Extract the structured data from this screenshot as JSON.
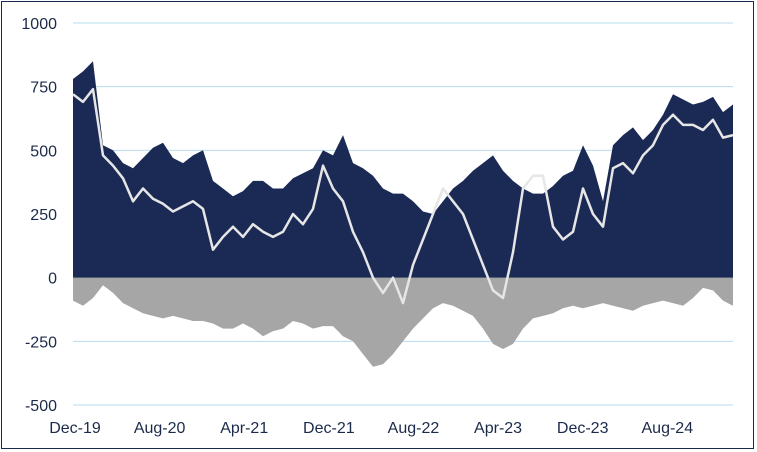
{
  "chart_data": {
    "type": "area",
    "title": "",
    "xlabel": "",
    "ylabel": "",
    "ylim": [
      -500,
      1000
    ],
    "yticks": [
      1000,
      750,
      500,
      250,
      0,
      -250,
      -500
    ],
    "xticks": [
      "Dec-19",
      "Aug-20",
      "Apr-21",
      "Dec-21",
      "Aug-22",
      "Apr-23",
      "Dec-23",
      "Aug-24"
    ],
    "xlim": [
      0,
      66
    ],
    "grid": "horizontal",
    "legend": "none",
    "colors": {
      "positive": "#1b2a55",
      "negative": "#a6a6a6",
      "line": "#e6e6e6",
      "grid": "#b7dcef",
      "axis": "#1b2a4a"
    },
    "series": [
      {
        "role": "positive-area",
        "x": [
          0,
          1,
          2,
          3,
          4,
          5,
          6,
          7,
          8,
          9,
          10,
          11,
          12,
          13,
          14,
          15,
          16,
          17,
          18,
          19,
          20,
          21,
          22,
          23,
          24,
          25,
          26,
          27,
          28,
          29,
          30,
          31,
          32,
          33,
          34,
          35,
          36,
          37,
          38,
          39,
          40,
          41,
          42,
          43,
          44,
          45,
          46,
          47,
          48,
          49,
          50,
          51,
          52,
          53,
          54,
          55,
          56,
          57,
          58,
          59,
          60,
          61,
          62,
          63,
          64,
          65,
          66
        ],
        "values": [
          780,
          810,
          850,
          520,
          500,
          450,
          430,
          470,
          510,
          530,
          470,
          450,
          480,
          500,
          380,
          350,
          320,
          340,
          380,
          380,
          350,
          350,
          390,
          410,
          430,
          500,
          480,
          560,
          450,
          430,
          400,
          350,
          330,
          330,
          300,
          260,
          250,
          300,
          350,
          380,
          420,
          450,
          480,
          420,
          380,
          350,
          330,
          330,
          360,
          400,
          420,
          520,
          440,
          300,
          520,
          560,
          590,
          540,
          580,
          640,
          720,
          700,
          680,
          690,
          710,
          650,
          680
        ]
      },
      {
        "role": "negative-area",
        "x": [
          0,
          1,
          2,
          3,
          4,
          5,
          6,
          7,
          8,
          9,
          10,
          11,
          12,
          13,
          14,
          15,
          16,
          17,
          18,
          19,
          20,
          21,
          22,
          23,
          24,
          25,
          26,
          27,
          28,
          29,
          30,
          31,
          32,
          33,
          34,
          35,
          36,
          37,
          38,
          39,
          40,
          41,
          42,
          43,
          44,
          45,
          46,
          47,
          48,
          49,
          50,
          51,
          52,
          53,
          54,
          55,
          56,
          57,
          58,
          59,
          60,
          61,
          62,
          63,
          64,
          65,
          66
        ],
        "values": [
          -90,
          -110,
          -80,
          -30,
          -60,
          -100,
          -120,
          -140,
          -150,
          -160,
          -150,
          -160,
          -170,
          -170,
          -180,
          -200,
          -200,
          -180,
          -200,
          -230,
          -210,
          -200,
          -170,
          -180,
          -200,
          -190,
          -190,
          -230,
          -250,
          -300,
          -350,
          -340,
          -300,
          -250,
          -200,
          -160,
          -120,
          -100,
          -110,
          -130,
          -150,
          -200,
          -260,
          -280,
          -260,
          -200,
          -160,
          -150,
          -140,
          -120,
          -110,
          -120,
          -110,
          -100,
          -110,
          -120,
          -130,
          -110,
          -100,
          -90,
          -100,
          -110,
          -80,
          -40,
          -50,
          -90,
          -110
        ]
      },
      {
        "role": "net-line",
        "x": [
          0,
          1,
          2,
          3,
          4,
          5,
          6,
          7,
          8,
          9,
          10,
          11,
          12,
          13,
          14,
          15,
          16,
          17,
          18,
          19,
          20,
          21,
          22,
          23,
          24,
          25,
          26,
          27,
          28,
          29,
          30,
          31,
          32,
          33,
          34,
          35,
          36,
          37,
          38,
          39,
          40,
          41,
          42,
          43,
          44,
          45,
          46,
          47,
          48,
          49,
          50,
          51,
          52,
          53,
          54,
          55,
          56,
          57,
          58,
          59,
          60,
          61,
          62,
          63,
          64,
          65,
          66
        ],
        "values": [
          720,
          690,
          740,
          480,
          440,
          390,
          300,
          350,
          310,
          290,
          260,
          280,
          300,
          270,
          110,
          160,
          200,
          160,
          210,
          180,
          160,
          180,
          250,
          210,
          270,
          440,
          350,
          300,
          180,
          100,
          0,
          -60,
          0,
          -100,
          50,
          150,
          250,
          350,
          300,
          250,
          150,
          50,
          -50,
          -80,
          100,
          350,
          400,
          400,
          200,
          150,
          180,
          350,
          250,
          200,
          430,
          450,
          410,
          480,
          520,
          600,
          640,
          600,
          600,
          580,
          620,
          550,
          560
        ]
      }
    ]
  }
}
